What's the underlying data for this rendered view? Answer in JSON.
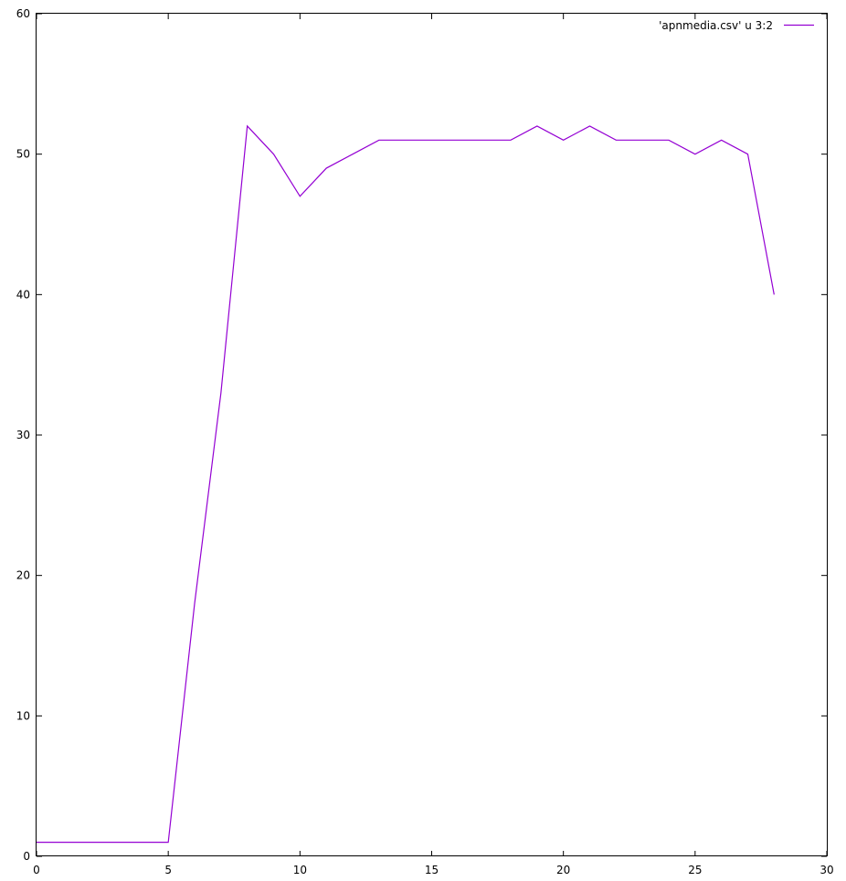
{
  "chart_data": {
    "type": "line",
    "title": "",
    "xlabel": "",
    "ylabel": "",
    "xlim": [
      0,
      30
    ],
    "ylim": [
      0,
      60
    ],
    "x_ticks": [
      0,
      5,
      10,
      15,
      20,
      25,
      30
    ],
    "y_ticks": [
      0,
      10,
      20,
      30,
      40,
      50,
      60
    ],
    "grid": false,
    "legend_position": "top-right",
    "series": [
      {
        "name": "'apnmedia.csv' u 3:2",
        "color": "#9400d3",
        "x": [
          0,
          1,
          2,
          3,
          4,
          5,
          6,
          7,
          8,
          9,
          10,
          11,
          12,
          13,
          14,
          15,
          16,
          17,
          18,
          19,
          20,
          21,
          22,
          23,
          24,
          25,
          26,
          27,
          28
        ],
        "y": [
          1,
          1,
          1,
          1,
          1,
          1,
          18,
          33,
          52,
          50,
          47,
          49,
          50,
          51,
          51,
          51,
          51,
          51,
          51,
          52,
          51,
          52,
          51,
          51,
          51,
          50,
          51,
          50,
          40
        ]
      }
    ]
  }
}
